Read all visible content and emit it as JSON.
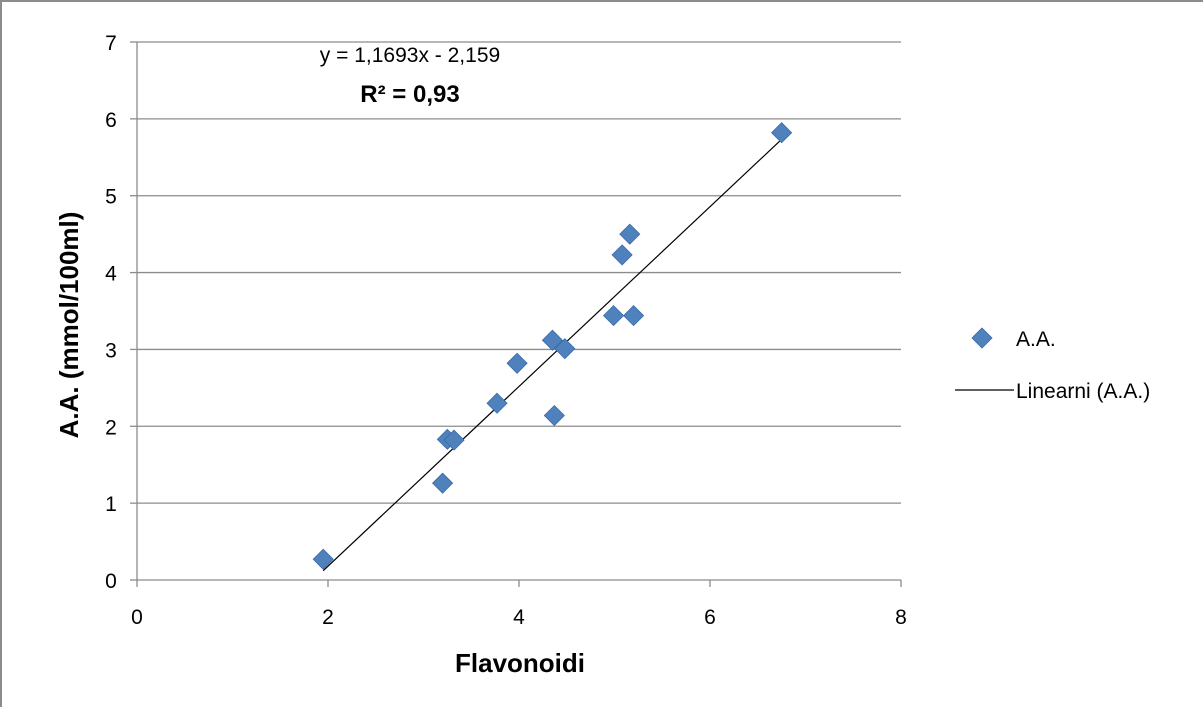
{
  "chart_data": {
    "type": "scatter",
    "title": "",
    "xlabel": "Flavonoidi",
    "ylabel": "A.A. (mmol/100ml)",
    "xlim": [
      0,
      8
    ],
    "ylim": [
      0,
      7
    ],
    "x_ticks": [
      "0",
      "2",
      "4",
      "6",
      "8"
    ],
    "y_ticks": [
      "0",
      "1",
      "2",
      "3",
      "4",
      "5",
      "6",
      "7"
    ],
    "grid": {
      "horizontal": true,
      "vertical": false
    },
    "legend_position": "right",
    "series": [
      {
        "name": "A.A.",
        "color": "#4f81bd",
        "marker": "diamond",
        "points": [
          {
            "x": 1.95,
            "y": 0.27
          },
          {
            "x": 3.2,
            "y": 1.26
          },
          {
            "x": 3.25,
            "y": 1.83
          },
          {
            "x": 3.32,
            "y": 1.82
          },
          {
            "x": 3.77,
            "y": 2.3
          },
          {
            "x": 3.98,
            "y": 2.82
          },
          {
            "x": 4.35,
            "y": 3.12
          },
          {
            "x": 4.48,
            "y": 3.01
          },
          {
            "x": 4.37,
            "y": 2.14
          },
          {
            "x": 4.99,
            "y": 3.44
          },
          {
            "x": 5.2,
            "y": 3.44
          },
          {
            "x": 5.08,
            "y": 4.23
          },
          {
            "x": 5.16,
            "y": 4.5
          },
          {
            "x": 6.75,
            "y": 5.82
          }
        ]
      }
    ],
    "trendline": {
      "name": "Linearni (A.A.)",
      "color": "#000000",
      "slope": 1.1693,
      "intercept": -2.159,
      "x_range": [
        1.95,
        6.75
      ]
    },
    "annotations": {
      "equation": "y = 1,1693x - 2,159",
      "r_squared": "R² = 0,93"
    }
  }
}
